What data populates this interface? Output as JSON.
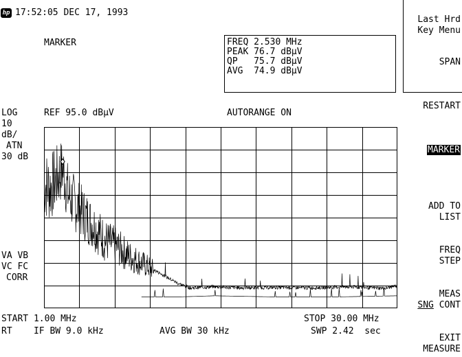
{
  "header": {
    "logo_text": "hp",
    "datetime": "17:52:05 DEC 17, 1993",
    "mode_label": "MARKER"
  },
  "marker_readout": {
    "freq": "FREQ 2.530 MHz",
    "peak": "PEAK 76.7 dBµV",
    "qp": "QP   75.7 dBµV",
    "avg": "AVG  74.9 dBµV"
  },
  "screen": {
    "scale_type": "LOG",
    "ref_level": "REF 95.0 dBµV",
    "autorange": "AUTORANGE ON",
    "scale_per_div_value": "10",
    "scale_per_div_unit": "dB/",
    "atten_label": "ATN",
    "atten_value": "30 dB",
    "flags_line1": "VA VB",
    "flags_line2": "VC FC",
    "flags_line3": "CORR",
    "start": "START 1.00 MHz",
    "stop": "STOP 30.00 MHz",
    "rbw": "RT    IF BW 9.0 kHz",
    "avg_bw": "AVG BW 30 kHz",
    "sweep": "SWP 2.42  sec"
  },
  "softkeys": {
    "last_hrd_line1": "Last Hrd",
    "last_hrd_line2": "Key Menu",
    "span": "SPAN",
    "restart": "RESTART",
    "marker": "MARKER",
    "add_to_line1": "ADD TO",
    "add_to_line2": "LIST",
    "freq_step_line1": "FREQ",
    "freq_step_line2": "STEP",
    "meas_line1": "MEAS",
    "meas_sng": "SNG",
    "meas_cont": "CONT",
    "exit_line1": "EXIT",
    "exit_line2": "MEASURE"
  },
  "chart_data": {
    "type": "line",
    "x_axis": {
      "start_mhz": 1.0,
      "stop_mhz": 30.0,
      "divisions": 10
    },
    "y_axis": {
      "ref_dbuv": 95.0,
      "db_per_div": 10,
      "divisions": 8,
      "scale": "log"
    },
    "marker": {
      "freq_mhz": 2.53,
      "level_dbuv": 76.7
    },
    "grid": true,
    "series": [
      {
        "x": [
          1.0,
          1.5,
          2.0,
          2.53,
          3,
          4,
          5,
          6,
          7,
          8,
          9,
          10,
          11,
          12,
          13,
          15,
          17,
          20,
          23,
          26,
          29,
          30
        ],
        "values": [
          70,
          68,
          72,
          76.7,
          65,
          58,
          52,
          45,
          42,
          38,
          35,
          32,
          29,
          26,
          24,
          24.5,
          24,
          24.2,
          24,
          24.5,
          23.8,
          25
        ]
      },
      {
        "x": [
          9,
          12,
          15,
          20,
          25,
          30
        ],
        "values": [
          20,
          20,
          20.5,
          20,
          20,
          20.5
        ]
      }
    ]
  }
}
